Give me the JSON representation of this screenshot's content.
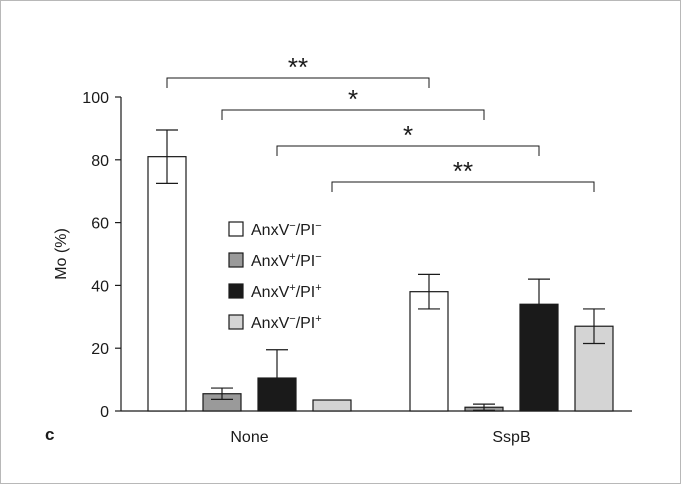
{
  "panel_label": "c",
  "chart_data": {
    "type": "bar",
    "title": "",
    "xlabel": "",
    "ylabel": "Mo (%)",
    "ylim": [
      0,
      100
    ],
    "yticks": [
      0,
      20,
      40,
      60,
      80,
      100
    ],
    "categories": [
      "None",
      "SspB"
    ],
    "series": [
      {
        "name": "AnxV−/PI−",
        "values": [
          81,
          38
        ],
        "errors": [
          8.5,
          5.5
        ],
        "color": "#ffffff"
      },
      {
        "name": "AnxV+/PI−",
        "values": [
          5.5,
          1.2
        ],
        "errors": [
          1.8,
          1.0
        ],
        "color": "#9a9a9a"
      },
      {
        "name": "AnxV+/PI+",
        "values": [
          10.5,
          34
        ],
        "errors": [
          9,
          8
        ],
        "color": "#1a1a1a"
      },
      {
        "name": "AnxV−/PI+",
        "values": [
          3.5,
          27
        ],
        "errors": [
          0,
          5.5
        ],
        "color": "#d4d4d4"
      }
    ],
    "legend": {
      "placement": "center",
      "entries": [
        {
          "base": "AnxV",
          "sup1": "−",
          "mid": "/PI",
          "sup2": "−",
          "color": "#ffffff"
        },
        {
          "base": "AnxV",
          "sup1": "+",
          "mid": "/PI",
          "sup2": "−",
          "color": "#9a9a9a"
        },
        {
          "base": "AnxV",
          "sup1": "+",
          "mid": "/PI",
          "sup2": "+",
          "color": "#1a1a1a"
        },
        {
          "base": "AnxV",
          "sup1": "−",
          "mid": "/PI",
          "sup2": "+",
          "color": "#d4d4d4"
        }
      ]
    },
    "significance": [
      {
        "from_series": 0,
        "to_series": 0,
        "label": "**"
      },
      {
        "from_series": 1,
        "to_series": 1,
        "label": "*"
      },
      {
        "from_series": 2,
        "to_series": 2,
        "label": "*"
      },
      {
        "from_series": 3,
        "to_series": 3,
        "label": "**"
      }
    ]
  }
}
